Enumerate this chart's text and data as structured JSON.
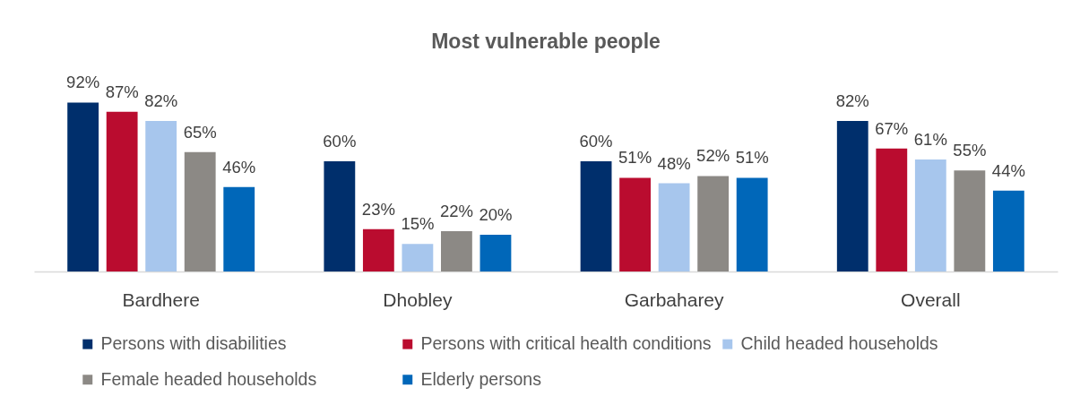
{
  "chart_data": {
    "type": "bar",
    "title": "Most vulnerable people",
    "categories": [
      "Bardhere",
      "Dhobley",
      "Garbaharey",
      "Overall"
    ],
    "series": [
      {
        "name": "Persons with disabilities",
        "color": "#002f6c",
        "values": [
          92,
          60,
          60,
          82
        ],
        "value_labels": [
          "92%",
          "60%",
          "60%",
          "82%"
        ]
      },
      {
        "name": "Persons with critical health conditions",
        "color": "#ba0c2f",
        "values": [
          87,
          23,
          51,
          67
        ],
        "value_labels": [
          "87%",
          "23%",
          "51%",
          "67%"
        ]
      },
      {
        "name": "Child headed households",
        "color": "#a7c6ed",
        "values": [
          82,
          15,
          48,
          61
        ],
        "value_labels": [
          "82%",
          "15%",
          "48%",
          "61%"
        ]
      },
      {
        "name": "Female headed households",
        "color": "#8c8985",
        "values": [
          65,
          22,
          52,
          55
        ],
        "value_labels": [
          "65%",
          "22%",
          "52%",
          "55%"
        ]
      },
      {
        "name": "Elderly persons",
        "color": "#0067b9",
        "values": [
          46,
          20,
          51,
          44
        ],
        "value_labels": [
          "46%",
          "20%",
          "51%",
          "44%"
        ]
      }
    ],
    "tick_labels": "x",
    "legend": "bottom"
  }
}
